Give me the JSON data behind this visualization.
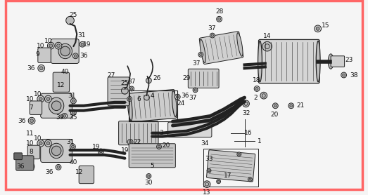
{
  "background_color": "#f5f5f5",
  "border_color": "#ff6666",
  "border_width": 2.5,
  "line_color": "#222222",
  "label_color": "#111111",
  "label_fontsize": 6.5,
  "figsize": [
    5.23,
    2.78
  ],
  "dpi": 100,
  "image_b64": ""
}
